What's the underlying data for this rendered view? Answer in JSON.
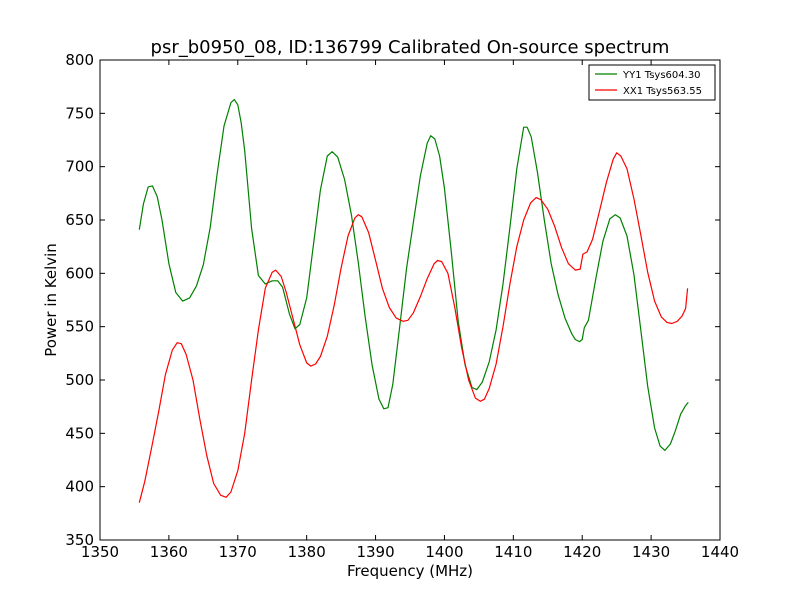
{
  "chart_data": {
    "type": "line",
    "title": "psr_b0950_08, ID:136799 Calibrated On-source spectrum",
    "xlabel": "Frequency (MHz)",
    "ylabel": "Power in Kelvin",
    "xlim": [
      1350,
      1440
    ],
    "ylim": [
      350,
      800
    ],
    "xticks": [
      "1350",
      "1360",
      "1370",
      "1380",
      "1390",
      "1400",
      "1410",
      "1420",
      "1430",
      "1440"
    ],
    "yticks": [
      "350",
      "400",
      "450",
      "500",
      "550",
      "600",
      "650",
      "700",
      "750",
      "800"
    ],
    "grid": false,
    "legend_position": "top-right",
    "series": [
      {
        "name": "YY1 Tsys604.30",
        "color": "#008000",
        "points": [
          [
            1355.7,
            641
          ],
          [
            1356.3,
            665
          ],
          [
            1357.0,
            681
          ],
          [
            1357.6,
            682
          ],
          [
            1358.3,
            672
          ],
          [
            1359.0,
            650
          ],
          [
            1360.0,
            609
          ],
          [
            1361.0,
            582
          ],
          [
            1362.0,
            574
          ],
          [
            1363.0,
            577
          ],
          [
            1364.0,
            588
          ],
          [
            1365.0,
            608
          ],
          [
            1366.0,
            643
          ],
          [
            1367.0,
            693
          ],
          [
            1368.0,
            738
          ],
          [
            1369.0,
            760
          ],
          [
            1369.5,
            763
          ],
          [
            1370.0,
            758
          ],
          [
            1370.5,
            741
          ],
          [
            1371.0,
            715
          ],
          [
            1372.0,
            642
          ],
          [
            1373.0,
            598
          ],
          [
            1374.0,
            590
          ],
          [
            1375.0,
            593
          ],
          [
            1375.8,
            593
          ],
          [
            1376.5,
            587
          ],
          [
            1377.5,
            562
          ],
          [
            1378.3,
            548
          ],
          [
            1379.0,
            552
          ],
          [
            1380.0,
            577
          ],
          [
            1381.0,
            628
          ],
          [
            1382.0,
            678
          ],
          [
            1383.0,
            710
          ],
          [
            1383.7,
            714
          ],
          [
            1384.5,
            709
          ],
          [
            1385.5,
            688
          ],
          [
            1386.5,
            655
          ],
          [
            1387.5,
            610
          ],
          [
            1388.5,
            559
          ],
          [
            1389.5,
            514
          ],
          [
            1390.5,
            482
          ],
          [
            1391.2,
            473
          ],
          [
            1391.8,
            474
          ],
          [
            1392.5,
            496
          ],
          [
            1393.5,
            550
          ],
          [
            1394.5,
            605
          ],
          [
            1395.5,
            648
          ],
          [
            1396.5,
            691
          ],
          [
            1397.5,
            722
          ],
          [
            1398.0,
            729
          ],
          [
            1398.6,
            726
          ],
          [
            1399.3,
            710
          ],
          [
            1400.0,
            680
          ],
          [
            1401.0,
            620
          ],
          [
            1402.0,
            555
          ],
          [
            1403.0,
            514
          ],
          [
            1404.0,
            493
          ],
          [
            1404.7,
            491
          ],
          [
            1405.5,
            498
          ],
          [
            1406.5,
            517
          ],
          [
            1407.5,
            547
          ],
          [
            1408.5,
            590
          ],
          [
            1409.5,
            643
          ],
          [
            1410.5,
            698
          ],
          [
            1411.5,
            737
          ],
          [
            1412.0,
            737
          ],
          [
            1412.6,
            728
          ],
          [
            1413.5,
            695
          ],
          [
            1414.5,
            650
          ],
          [
            1415.5,
            609
          ],
          [
            1416.5,
            580
          ],
          [
            1417.5,
            558
          ],
          [
            1418.5,
            543
          ],
          [
            1419.0,
            538
          ],
          [
            1419.6,
            536
          ],
          [
            1420.0,
            538
          ],
          [
            1420.3,
            549
          ],
          [
            1420.9,
            556
          ],
          [
            1422.0,
            596
          ],
          [
            1423.0,
            630
          ],
          [
            1424.0,
            651
          ],
          [
            1424.8,
            655
          ],
          [
            1425.5,
            652
          ],
          [
            1426.5,
            635
          ],
          [
            1427.5,
            599
          ],
          [
            1428.5,
            547
          ],
          [
            1429.5,
            494
          ],
          [
            1430.5,
            455
          ],
          [
            1431.3,
            438
          ],
          [
            1432.0,
            434
          ],
          [
            1432.8,
            440
          ],
          [
            1433.5,
            452
          ],
          [
            1434.3,
            468
          ],
          [
            1435.0,
            476
          ],
          [
            1435.4,
            479
          ]
        ]
      },
      {
        "name": "XX1 Tsys563.55",
        "color": "#ff0000",
        "points": [
          [
            1355.7,
            385
          ],
          [
            1356.5,
            405
          ],
          [
            1357.5,
            437
          ],
          [
            1358.5,
            470
          ],
          [
            1359.5,
            505
          ],
          [
            1360.5,
            528
          ],
          [
            1361.2,
            535
          ],
          [
            1361.8,
            534
          ],
          [
            1362.5,
            524
          ],
          [
            1363.5,
            500
          ],
          [
            1364.5,
            463
          ],
          [
            1365.5,
            429
          ],
          [
            1366.5,
            403
          ],
          [
            1367.5,
            392
          ],
          [
            1368.3,
            390
          ],
          [
            1369.0,
            395
          ],
          [
            1370.0,
            415
          ],
          [
            1371.0,
            450
          ],
          [
            1372.0,
            500
          ],
          [
            1373.0,
            547
          ],
          [
            1374.0,
            586
          ],
          [
            1375.0,
            601
          ],
          [
            1375.5,
            603
          ],
          [
            1376.3,
            597
          ],
          [
            1377.0,
            583
          ],
          [
            1378.0,
            558
          ],
          [
            1379.0,
            533
          ],
          [
            1380.0,
            516
          ],
          [
            1380.6,
            513
          ],
          [
            1381.3,
            515
          ],
          [
            1382.0,
            522
          ],
          [
            1383.0,
            541
          ],
          [
            1384.0,
            570
          ],
          [
            1385.0,
            605
          ],
          [
            1386.0,
            635
          ],
          [
            1387.0,
            652
          ],
          [
            1387.5,
            655
          ],
          [
            1388.0,
            653
          ],
          [
            1389.0,
            638
          ],
          [
            1390.0,
            612
          ],
          [
            1391.0,
            586
          ],
          [
            1392.0,
            568
          ],
          [
            1393.0,
            558
          ],
          [
            1394.0,
            555
          ],
          [
            1394.7,
            556
          ],
          [
            1395.5,
            563
          ],
          [
            1396.5,
            578
          ],
          [
            1397.5,
            595
          ],
          [
            1398.5,
            609
          ],
          [
            1399.0,
            612
          ],
          [
            1399.6,
            611
          ],
          [
            1400.5,
            600
          ],
          [
            1401.5,
            568
          ],
          [
            1402.5,
            530
          ],
          [
            1403.5,
            500
          ],
          [
            1404.5,
            483
          ],
          [
            1405.2,
            480
          ],
          [
            1405.8,
            482
          ],
          [
            1406.5,
            492
          ],
          [
            1407.5,
            515
          ],
          [
            1408.5,
            550
          ],
          [
            1409.5,
            590
          ],
          [
            1410.5,
            625
          ],
          [
            1411.5,
            650
          ],
          [
            1412.5,
            666
          ],
          [
            1413.3,
            671
          ],
          [
            1414.0,
            669
          ],
          [
            1415.0,
            660
          ],
          [
            1416.0,
            644
          ],
          [
            1417.0,
            624
          ],
          [
            1418.0,
            609
          ],
          [
            1419.0,
            603
          ],
          [
            1419.7,
            604
          ],
          [
            1420.1,
            618
          ],
          [
            1420.7,
            620
          ],
          [
            1421.5,
            632
          ],
          [
            1422.5,
            658
          ],
          [
            1423.5,
            685
          ],
          [
            1424.5,
            707
          ],
          [
            1425.0,
            713
          ],
          [
            1425.6,
            710
          ],
          [
            1426.5,
            698
          ],
          [
            1427.5,
            670
          ],
          [
            1428.5,
            636
          ],
          [
            1429.5,
            601
          ],
          [
            1430.5,
            574
          ],
          [
            1431.5,
            559
          ],
          [
            1432.3,
            554
          ],
          [
            1433.0,
            553
          ],
          [
            1433.8,
            555
          ],
          [
            1434.5,
            560
          ],
          [
            1435.0,
            567
          ],
          [
            1435.3,
            586
          ]
        ]
      }
    ]
  }
}
